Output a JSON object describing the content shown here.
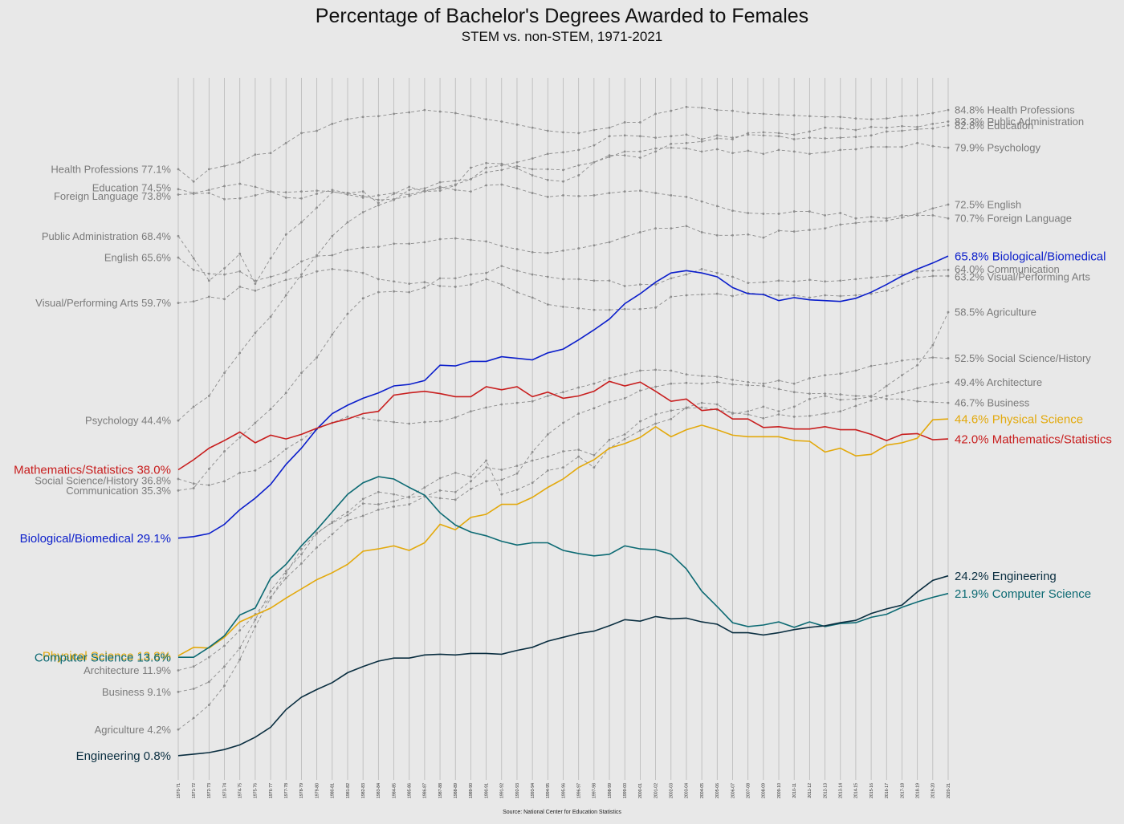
{
  "title": "Percentage of Bachelor's Degrees Awarded to Females",
  "subtitle": "STEM vs. non-STEM, 1971-2021",
  "source": "Source: National Center for Education Statistics",
  "colors": {
    "background": "#e8e8e8",
    "grid": "#b8b8b8",
    "nonstem": "#8c8c8c",
    "nonstem_label": "#7a7a7a"
  },
  "chart_data": {
    "type": "line",
    "ylim": [
      0,
      95
    ],
    "grid": "vertical lines at each academic year",
    "x": [
      "1970-71",
      "1971-72",
      "1972-73",
      "1973-74",
      "1974-75",
      "1975-76",
      "1976-77",
      "1977-78",
      "1978-79",
      "1979-80",
      "1980-81",
      "1981-82",
      "1982-83",
      "1983-84",
      "1984-85",
      "1985-86",
      "1986-87",
      "1987-88",
      "1988-89",
      "1989-90",
      "1990-91",
      "1991-92",
      "1992-93",
      "1993-94",
      "1994-95",
      "1995-96",
      "1996-97",
      "1997-98",
      "1998-99",
      "1999-00",
      "2000-01",
      "2001-02",
      "2002-03",
      "2003-04",
      "2004-05",
      "2005-06",
      "2006-07",
      "2007-08",
      "2008-09",
      "2009-10",
      "2010-11",
      "2011-12",
      "2012-13",
      "2013-14",
      "2014-15",
      "2015-16",
      "2016-17",
      "2017-18",
      "2018-19",
      "2019-20",
      "2020-21"
    ],
    "series": [
      {
        "name": "Health Professions",
        "group": "nonstem",
        "start_label": "Health Professions 77.1%",
        "end_label": "84.8% Health Professions",
        "values": [
          77.1,
          75.5,
          77.1,
          77.5,
          78.0,
          79.0,
          79.2,
          80.5,
          81.8,
          82.1,
          83.0,
          83.6,
          83.9,
          84.0,
          84.3,
          84.5,
          84.8,
          84.6,
          84.4,
          84.0,
          83.6,
          83.3,
          82.9,
          82.5,
          82.1,
          81.9,
          81.8,
          82.2,
          82.5,
          83.2,
          83.2,
          84.3,
          84.7,
          85.2,
          85.1,
          84.8,
          84.7,
          84.4,
          84.3,
          84.2,
          84.1,
          84.0,
          83.9,
          83.9,
          83.7,
          83.6,
          83.7,
          84.0,
          84.1,
          84.4,
          84.8
        ],
        "color": "#8c8c8c"
      },
      {
        "name": "Public Administration",
        "group": "nonstem",
        "start_label": "Public Administration 68.4%",
        "end_label": "83.3% Public Administration",
        "values": [
          68.4,
          65.5,
          62.6,
          64.2,
          66.1,
          62.2,
          65.5,
          68.6,
          70.2,
          72.1,
          74.1,
          74.0,
          74.2,
          72.7,
          73.9,
          74.8,
          74.2,
          74.3,
          75.0,
          77.3,
          77.9,
          77.8,
          77.2,
          76.3,
          75.7,
          75.5,
          76.3,
          78.0,
          78.9,
          78.9,
          78.6,
          79.4,
          80.4,
          80.5,
          80.7,
          81.1,
          81.0,
          81.8,
          81.9,
          81.8,
          81.6,
          82.0,
          82.5,
          82.4,
          82.2,
          82.6,
          82.5,
          82.7,
          82.6,
          83.0,
          83.3
        ],
        "color": "#8c8c8c"
      },
      {
        "name": "Education",
        "group": "nonstem",
        "start_label": "Education 74.5%",
        "end_label": "82.8% Education",
        "values": [
          74.5,
          74.0,
          74.4,
          74.9,
          75.2,
          74.8,
          74.2,
          74.1,
          74.2,
          74.3,
          74.2,
          73.8,
          73.4,
          73.7,
          74.0,
          73.8,
          74.3,
          74.6,
          75.1,
          75.8,
          77.3,
          77.6,
          78.0,
          78.5,
          79.1,
          79.3,
          79.6,
          80.2,
          81.4,
          81.5,
          81.4,
          81.2,
          81.4,
          81.6,
          81.0,
          81.5,
          81.2,
          81.6,
          81.5,
          81.4,
          81.0,
          81.2,
          81.1,
          81.2,
          81.3,
          81.5,
          82.0,
          82.1,
          82.3,
          82.4,
          82.8
        ],
        "color": "#8c8c8c"
      },
      {
        "name": "Psychology",
        "group": "nonstem",
        "start_label": "Psychology 44.4%",
        "end_label": "79.9% Psychology",
        "values": [
          44.4,
          46.2,
          47.6,
          50.6,
          53.2,
          55.8,
          57.9,
          60.7,
          63.4,
          65.9,
          68.4,
          70.2,
          71.5,
          72.4,
          73.1,
          74.4,
          74.6,
          75.4,
          75.6,
          75.8,
          76.7,
          77.0,
          77.5,
          77.1,
          77.1,
          77.0,
          77.6,
          78.0,
          78.7,
          79.4,
          79.4,
          79.8,
          79.9,
          79.8,
          79.4,
          79.7,
          79.2,
          79.5,
          79.1,
          79.6,
          79.4,
          79.1,
          79.3,
          79.6,
          79.7,
          80.0,
          80.0,
          80.0,
          80.5,
          80.1,
          79.9
        ],
        "color": "#8c8c8c"
      },
      {
        "name": "English",
        "group": "nonstem",
        "start_label": "English 65.6%",
        "end_label": "72.5% English",
        "values": [
          65.6,
          64.0,
          63.5,
          63.4,
          63.8,
          62.6,
          63.1,
          63.7,
          65.1,
          65.8,
          65.9,
          66.6,
          66.9,
          67.0,
          67.4,
          67.4,
          67.6,
          68.0,
          68.1,
          67.9,
          67.7,
          67.1,
          66.7,
          66.3,
          66.2,
          66.5,
          66.8,
          67.2,
          67.6,
          68.3,
          68.9,
          69.4,
          69.4,
          69.7,
          68.9,
          68.5,
          68.5,
          68.6,
          68.2,
          69.1,
          69.0,
          69.2,
          69.4,
          69.9,
          70.1,
          70.3,
          70.4,
          70.8,
          71.3,
          72.0,
          72.5
        ],
        "color": "#8c8c8c"
      },
      {
        "name": "Foreign Language",
        "group": "nonstem",
        "start_label": "Foreign Language 73.8%",
        "end_label": "70.7% Foreign Language",
        "values": [
          73.8,
          73.9,
          74.0,
          73.2,
          73.3,
          73.7,
          74.2,
          73.4,
          73.3,
          73.9,
          74.4,
          74.0,
          73.6,
          73.1,
          73.2,
          73.6,
          74.2,
          74.8,
          74.4,
          74.2,
          75.0,
          75.1,
          74.6,
          74.0,
          73.5,
          73.7,
          73.6,
          73.7,
          74.0,
          74.2,
          74.3,
          74.0,
          73.7,
          73.5,
          72.9,
          72.3,
          71.7,
          71.4,
          71.3,
          71.3,
          71.6,
          71.6,
          71.1,
          71.4,
          70.7,
          70.9,
          70.7,
          71.1,
          71.1,
          71.1,
          70.7
        ],
        "color": "#8c8c8c"
      },
      {
        "name": "Communication",
        "group": "nonstem",
        "start_label": "Communication 35.3%",
        "end_label": "64.0% Communication",
        "values": [
          35.3,
          35.6,
          38.1,
          40.4,
          42.2,
          44.1,
          45.9,
          48.0,
          50.6,
          52.6,
          55.6,
          58.3,
          60.3,
          61.1,
          61.2,
          61.1,
          61.7,
          62.9,
          62.9,
          63.4,
          63.6,
          64.5,
          63.9,
          63.4,
          63.1,
          62.8,
          62.8,
          62.6,
          62.6,
          61.9,
          62.1,
          62.1,
          62.9,
          63.4,
          64.1,
          63.6,
          63.1,
          62.3,
          62.4,
          62.6,
          62.5,
          62.7,
          62.5,
          62.6,
          62.8,
          63.0,
          63.2,
          63.4,
          63.8,
          63.9,
          64.0
        ],
        "color": "#8c8c8c"
      },
      {
        "name": "Visual/Performing Arts",
        "group": "nonstem",
        "start_label": "Visual/Performing Arts 59.7%",
        "end_label": "63.2% Visual/Performing Arts",
        "values": [
          59.7,
          59.9,
          60.5,
          60.2,
          61.8,
          61.3,
          62.0,
          62.7,
          63.1,
          63.8,
          64.1,
          63.9,
          63.6,
          62.8,
          62.5,
          62.2,
          62.4,
          61.9,
          61.8,
          62.1,
          62.8,
          62.1,
          61.1,
          60.4,
          59.5,
          59.2,
          59.0,
          58.8,
          58.8,
          58.9,
          58.9,
          59.1,
          60.5,
          60.7,
          60.8,
          60.9,
          60.6,
          61.0,
          60.8,
          60.7,
          60.7,
          60.4,
          60.7,
          60.6,
          60.7,
          60.9,
          61.3,
          62.2,
          63.0,
          63.2,
          63.2
        ],
        "color": "#8c8c8c"
      },
      {
        "name": "Agriculture",
        "group": "nonstem",
        "start_label": "Agriculture  4.2%",
        "end_label": "58.5% Agriculture",
        "values": [
          4.2,
          5.7,
          7.4,
          9.9,
          13.3,
          17.6,
          21.3,
          24.5,
          27.7,
          29.8,
          31.1,
          32.1,
          33.6,
          33.5,
          33.9,
          34.5,
          35.7,
          36.9,
          37.6,
          37.1,
          39.2,
          34.8,
          35.4,
          36.3,
          37.9,
          38.3,
          39.7,
          38.3,
          40.8,
          42.0,
          43.1,
          44.0,
          44.6,
          46.1,
          46.7,
          46.5,
          45.3,
          45.6,
          46.2,
          45.6,
          46.2,
          47.2,
          47.6,
          47.1,
          47.2,
          47.5,
          48.9,
          50.3,
          51.6,
          54.2,
          58.5
        ],
        "color": "#8c8c8c"
      },
      {
        "name": "Social Science/History",
        "group": "nonstem",
        "start_label": "Social Science/History 36.8%",
        "end_label": "52.5% Social Science/History",
        "values": [
          36.8,
          36.2,
          36.0,
          36.5,
          37.6,
          37.9,
          39.1,
          40.7,
          41.9,
          43.3,
          44.1,
          44.9,
          44.7,
          44.4,
          44.2,
          44.0,
          44.2,
          44.3,
          44.8,
          45.6,
          46.1,
          46.5,
          46.7,
          46.9,
          47.6,
          48.1,
          48.7,
          49.2,
          49.9,
          50.4,
          50.9,
          51.0,
          50.9,
          50.4,
          50.2,
          50.1,
          49.7,
          49.4,
          49.2,
          49.6,
          49.2,
          49.9,
          50.3,
          50.5,
          50.9,
          51.5,
          51.8,
          52.2,
          52.4,
          52.6,
          52.5
        ],
        "color": "#8c8c8c"
      },
      {
        "name": "Architecture",
        "group": "nonstem",
        "start_label": "Architecture 11.9%",
        "end_label": "49.4% Architecture",
        "values": [
          11.9,
          12.4,
          13.6,
          15.1,
          17.1,
          19.2,
          21.4,
          23.9,
          25.8,
          27.9,
          29.6,
          31.4,
          32.0,
          32.8,
          33.2,
          33.5,
          34.5,
          35.3,
          35.1,
          36.5,
          38.3,
          38.0,
          38.5,
          39.2,
          39.7,
          40.4,
          40.6,
          39.9,
          41.9,
          42.6,
          44.3,
          45.2,
          45.7,
          46.0,
          46.1,
          45.8,
          45.4,
          45.2,
          44.7,
          45.2,
          44.9,
          45.0,
          45.3,
          45.6,
          46.3,
          47.0,
          47.6,
          48.1,
          48.6,
          49.1,
          49.4
        ],
        "color": "#8c8c8c"
      },
      {
        "name": "Business",
        "group": "nonstem",
        "start_label": "Business  9.1%",
        "end_label": "46.7% Business",
        "values": [
          9.1,
          9.5,
          10.4,
          12.4,
          14.8,
          18.5,
          22.2,
          24.8,
          27.0,
          29.7,
          31.2,
          32.5,
          34.2,
          35.1,
          34.8,
          34.4,
          34.6,
          34.3,
          34.1,
          35.5,
          36.5,
          36.7,
          37.5,
          40.3,
          42.6,
          44.1,
          45.3,
          46.0,
          46.8,
          47.3,
          48.3,
          48.8,
          49.2,
          49.3,
          49.2,
          49.4,
          49.1,
          49.0,
          48.9,
          48.5,
          48.1,
          47.9,
          47.9,
          47.8,
          47.6,
          47.6,
          47.2,
          47.2,
          46.9,
          46.8,
          46.7
        ],
        "color": "#8c8c8c"
      },
      {
        "name": "Biological/Biomedical",
        "group": "stem",
        "start_label": "Biological/Biomedical 29.1%",
        "end_label": "65.8% Biological/Biomedical",
        "values": [
          29.1,
          29.3,
          29.7,
          30.9,
          32.8,
          34.3,
          36.1,
          38.7,
          40.8,
          43.3,
          45.3,
          46.4,
          47.3,
          48.0,
          48.9,
          49.1,
          49.6,
          51.6,
          51.5,
          52.1,
          52.1,
          52.7,
          52.5,
          52.3,
          53.2,
          53.7,
          54.9,
          56.2,
          57.6,
          59.6,
          60.9,
          62.4,
          63.6,
          63.9,
          63.6,
          63.1,
          61.7,
          60.9,
          60.8,
          60.0,
          60.4,
          60.1,
          60.0,
          59.9,
          60.3,
          61.1,
          62.1,
          63.2,
          64.1,
          64.9,
          65.8
        ],
        "color": "#0b1ecb"
      },
      {
        "name": "Mathematics/Statistics",
        "group": "stem",
        "start_label": "Mathematics/Statistics 38.0%",
        "end_label": "42.0% Mathematics/Statistics",
        "values": [
          38.0,
          39.3,
          40.8,
          41.8,
          42.9,
          41.5,
          42.5,
          42.0,
          42.6,
          43.4,
          44.1,
          44.6,
          45.3,
          45.6,
          47.7,
          48.0,
          48.2,
          47.9,
          47.5,
          47.5,
          48.8,
          48.4,
          48.8,
          47.5,
          48.1,
          47.3,
          47.6,
          48.2,
          49.5,
          48.9,
          49.4,
          48.2,
          46.9,
          47.2,
          45.7,
          45.9,
          44.6,
          44.6,
          43.5,
          43.6,
          43.3,
          43.3,
          43.6,
          43.2,
          43.2,
          42.6,
          41.8,
          42.6,
          42.7,
          41.9,
          42.0
        ],
        "color": "#c81e1e"
      },
      {
        "name": "Physical Science",
        "group": "stem",
        "start_label": "Physical Science 13.8%",
        "end_label": "44.6% Physical Science",
        "values": [
          13.8,
          14.9,
          14.8,
          16.2,
          18.2,
          19.1,
          20.0,
          21.3,
          22.5,
          23.7,
          24.6,
          25.7,
          27.4,
          27.7,
          28.1,
          27.5,
          28.5,
          30.9,
          30.2,
          31.8,
          32.2,
          33.5,
          33.5,
          34.4,
          35.7,
          36.8,
          38.3,
          39.3,
          40.8,
          41.4,
          42.2,
          43.6,
          42.3,
          43.2,
          43.8,
          43.2,
          42.5,
          42.3,
          42.3,
          42.3,
          41.8,
          41.7,
          40.3,
          40.8,
          39.8,
          40.0,
          41.2,
          41.5,
          42.1,
          44.5,
          44.6
        ],
        "color": "#e3a90c"
      },
      {
        "name": "Computer Science",
        "group": "stem",
        "start_label": "Computer Science 13.6%",
        "end_label": "21.9% Computer Science",
        "values": [
          13.6,
          13.6,
          14.9,
          16.4,
          19.1,
          20.0,
          23.9,
          25.7,
          28.1,
          30.2,
          32.5,
          34.8,
          36.3,
          37.1,
          36.8,
          35.7,
          34.7,
          32.4,
          30.8,
          29.9,
          29.4,
          28.7,
          28.2,
          28.5,
          28.5,
          27.5,
          27.1,
          26.8,
          27.0,
          28.1,
          27.7,
          27.6,
          27.0,
          25.1,
          22.2,
          20.2,
          18.1,
          17.6,
          17.8,
          18.2,
          17.5,
          18.2,
          17.6,
          18.0,
          18.1,
          18.8,
          19.2,
          20.1,
          20.8,
          21.4,
          21.9
        ],
        "color": "#0c6a73"
      },
      {
        "name": "Engineering",
        "group": "stem",
        "start_label": "Engineering  0.8%",
        "end_label": "24.2% Engineering",
        "values": [
          0.8,
          1.0,
          1.2,
          1.6,
          2.2,
          3.2,
          4.5,
          6.8,
          8.4,
          9.4,
          10.3,
          11.6,
          12.4,
          13.1,
          13.5,
          13.5,
          13.9,
          14.0,
          13.9,
          14.1,
          14.1,
          14.0,
          14.5,
          14.9,
          15.7,
          16.2,
          16.7,
          17.0,
          17.7,
          18.5,
          18.3,
          18.9,
          18.6,
          18.7,
          18.2,
          17.9,
          16.8,
          16.8,
          16.5,
          16.8,
          17.2,
          17.5,
          17.7,
          18.1,
          18.4,
          19.3,
          19.9,
          20.4,
          22.1,
          23.6,
          24.2
        ],
        "color": "#0a2e40"
      }
    ]
  }
}
